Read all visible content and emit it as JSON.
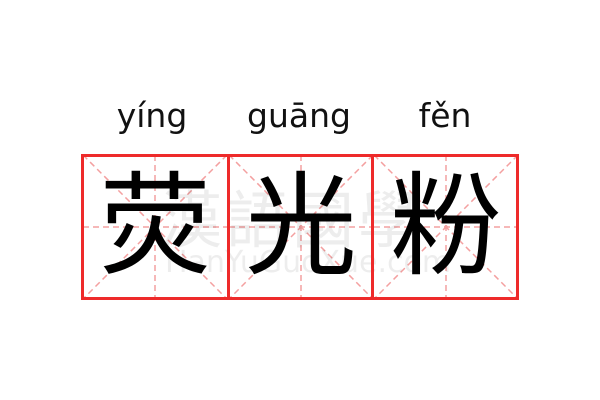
{
  "pinyin": [
    "yíng",
    "guāng",
    "fěn"
  ],
  "characters": [
    "荧",
    "光",
    "粉"
  ],
  "watermark": {
    "logo_text": "漢語國學",
    "site_text": "HanYuGuoXue.com"
  },
  "colors": {
    "grid_border": "#ee2a2a",
    "guide_lines": "#f4a0a0",
    "text": "#000000"
  }
}
